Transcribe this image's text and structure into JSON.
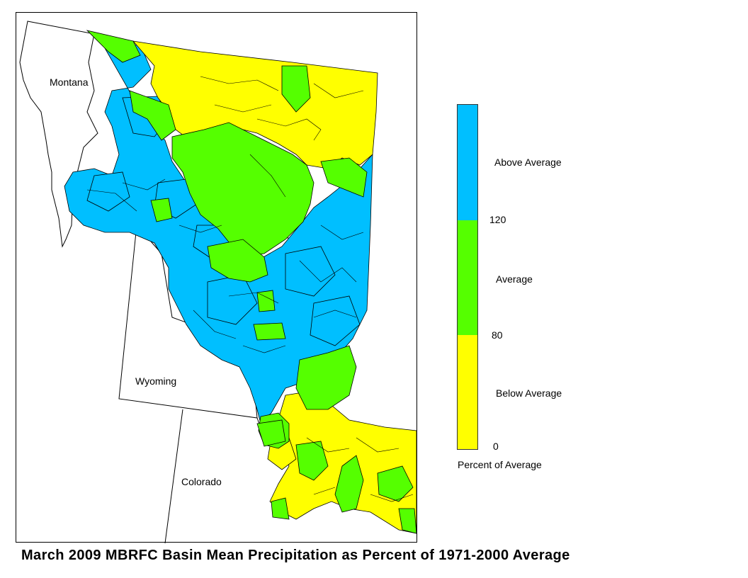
{
  "title": "March 2009 MBRFC Basin Mean Precipitation as Percent of 1971-2000 Average",
  "states": {
    "montana": "Montana",
    "wyoming": "Wyoming",
    "colorado": "Colorado"
  },
  "legend": {
    "title": "Percent of Average",
    "categories": [
      {
        "label": "Above Average",
        "range": [
          120,
          null
        ],
        "color": "#00bfff"
      },
      {
        "label": "Average",
        "range": [
          80,
          120
        ],
        "color": "#55ff00"
      },
      {
        "label": "Below Average",
        "range": [
          0,
          80
        ],
        "color": "#ffff00"
      }
    ],
    "ticks": [
      "120",
      "80",
      "0"
    ]
  },
  "colors": {
    "above": "#00bfff",
    "average": "#55ff00",
    "below": "#ffff00",
    "boundary": "#000000"
  }
}
